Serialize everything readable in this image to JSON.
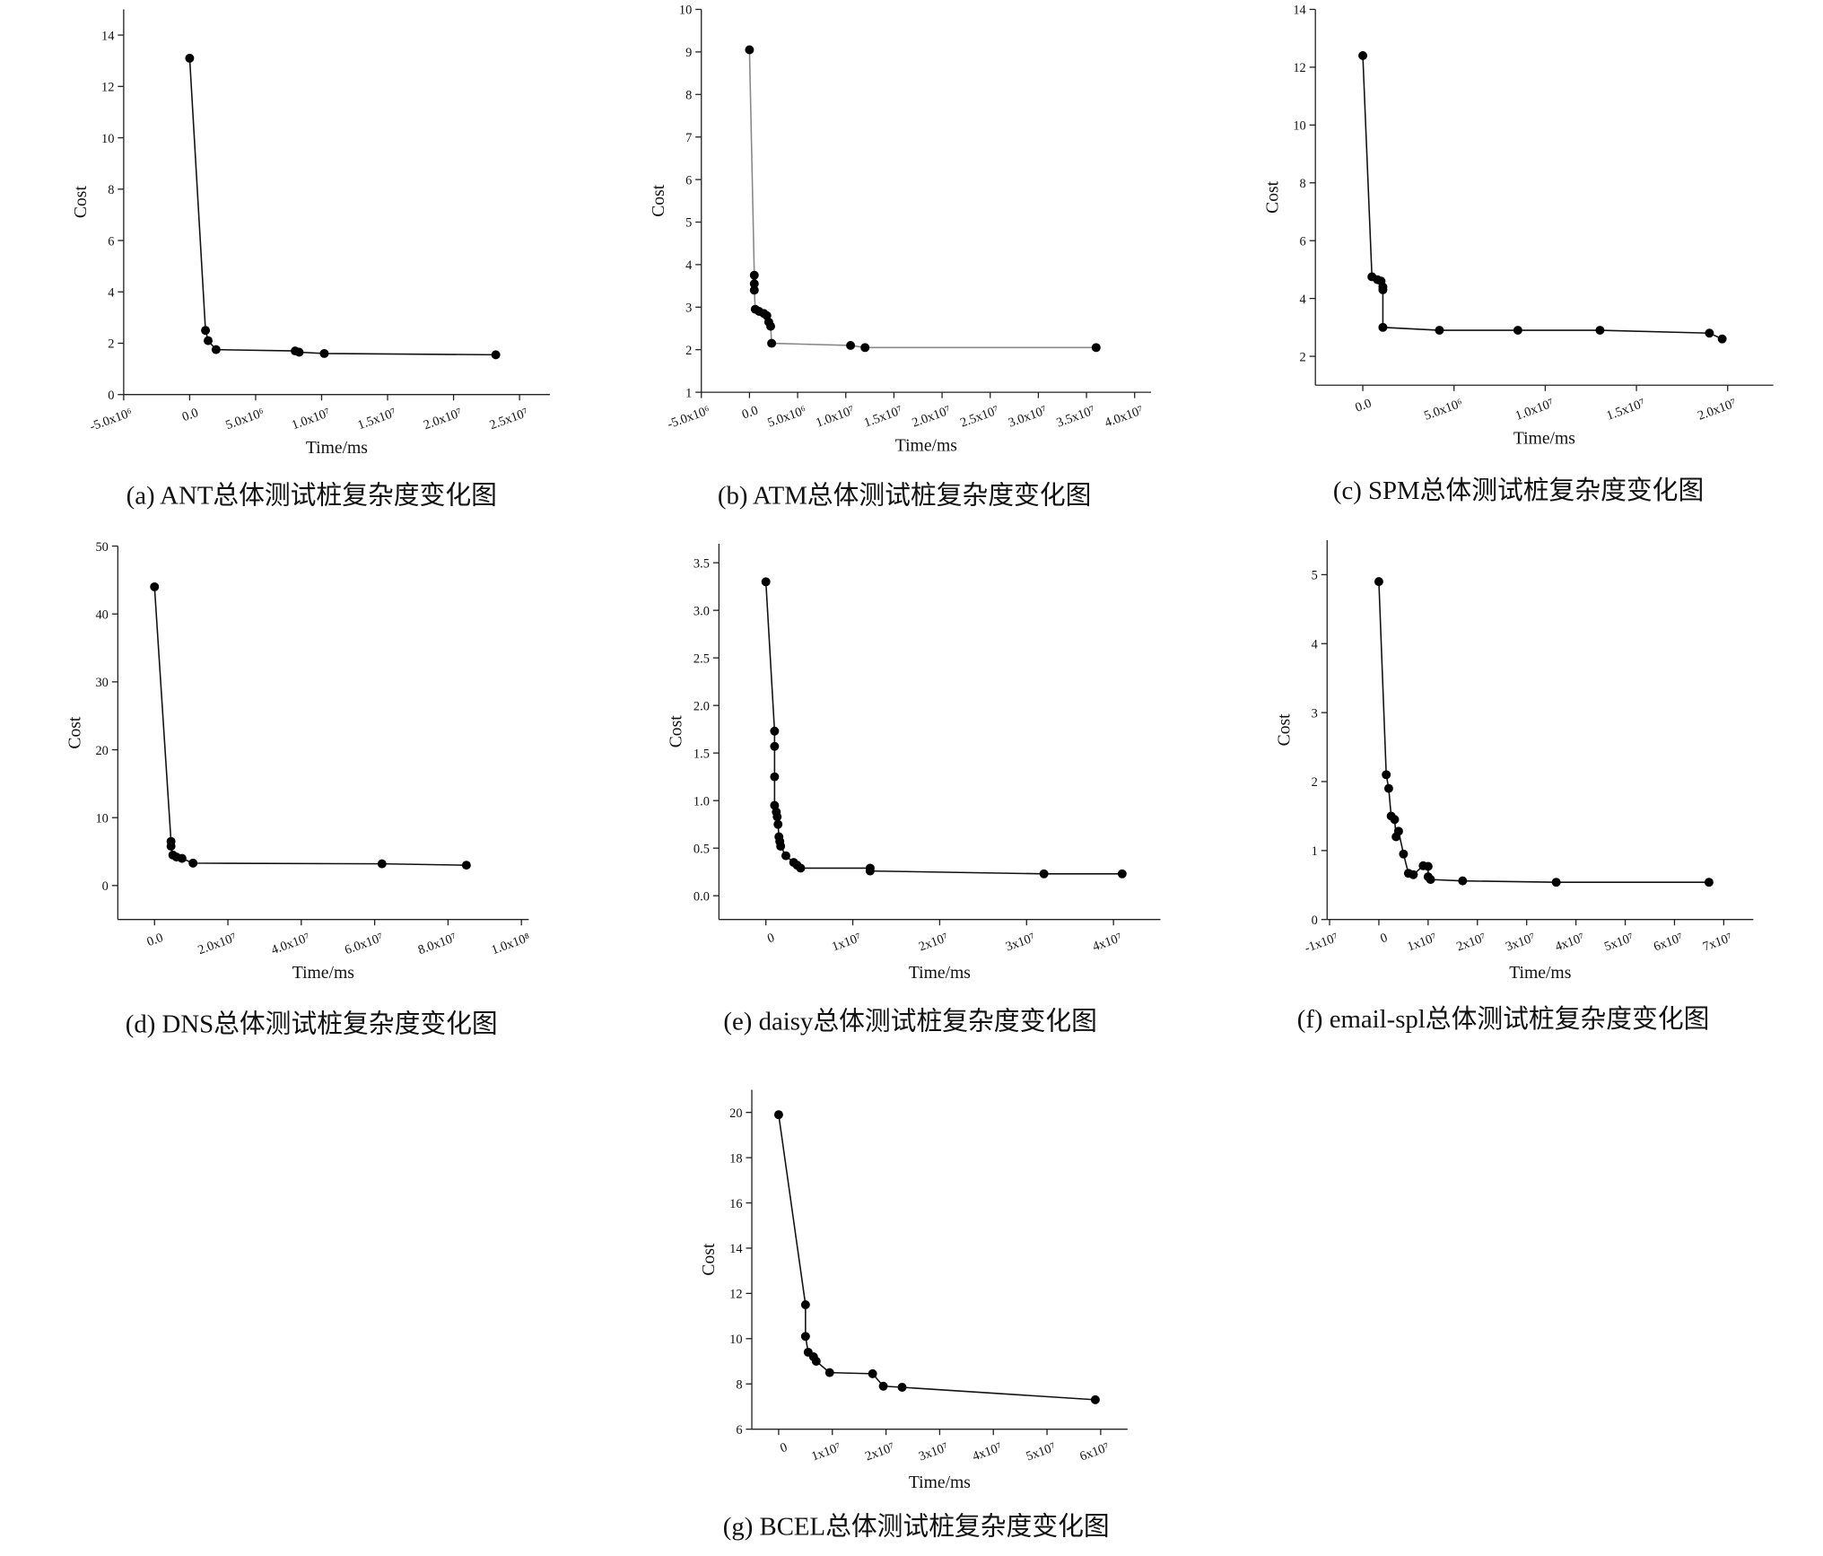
{
  "chart_data": [
    {
      "type": "line",
      "caption": "(a) ANT总体测试桩复杂度变化图",
      "xlabel": "Time/ms",
      "ylabel": "Cost",
      "color": "#111111",
      "xlim": [
        -5000000,
        27300000
      ],
      "ylim": [
        0,
        15
      ],
      "xticks": [
        {
          "value": -5000000,
          "label": "-5.0x10⁶"
        },
        {
          "value": 0,
          "label": "0.0"
        },
        {
          "value": 5000000,
          "label": "5.0x10⁶"
        },
        {
          "value": 10000000,
          "label": "1.0x10⁷"
        },
        {
          "value": 15000000,
          "label": "1.5x10⁷"
        },
        {
          "value": 20000000,
          "label": "2.0x10⁷"
        },
        {
          "value": 25000000,
          "label": "2.5x10⁷"
        }
      ],
      "yticks": [
        0,
        2,
        4,
        6,
        8,
        10,
        12,
        14
      ],
      "x": [
        0,
        1200000,
        1400000,
        2000000,
        8000000,
        8300000,
        10200000,
        23200000
      ],
      "values": [
        13.1,
        2.5,
        2.1,
        1.75,
        1.7,
        1.65,
        1.6,
        1.55
      ]
    },
    {
      "type": "line",
      "caption": "(b) ATM总体测试桩复杂度变化图",
      "xlabel": "Time/ms",
      "ylabel": "Cost",
      "color": "#888888",
      "xlim": [
        -5000000,
        41700000
      ],
      "ylim": [
        1,
        10
      ],
      "xticks": [
        {
          "value": -5000000,
          "label": "-5.0x10⁶"
        },
        {
          "value": 0,
          "label": "0.0"
        },
        {
          "value": 5000000,
          "label": "5.0x10⁶"
        },
        {
          "value": 10000000,
          "label": "1.0x10⁷"
        },
        {
          "value": 15000000,
          "label": "1.5x10⁷"
        },
        {
          "value": 20000000,
          "label": "2.0x10⁷"
        },
        {
          "value": 25000000,
          "label": "2.5x10⁷"
        },
        {
          "value": 30000000,
          "label": "3.0x10⁷"
        },
        {
          "value": 35000000,
          "label": "3.5x10⁷"
        },
        {
          "value": 40000000,
          "label": "4.0x10⁷"
        }
      ],
      "yticks": [
        1,
        2,
        3,
        4,
        5,
        6,
        7,
        8,
        9,
        10
      ],
      "x": [
        0,
        500000,
        500000,
        500000,
        600000,
        1000000,
        1500000,
        1800000,
        2000000,
        2200000,
        2300000,
        10500000,
        12000000,
        36000000
      ],
      "values": [
        9.05,
        3.75,
        3.55,
        3.4,
        2.95,
        2.9,
        2.85,
        2.8,
        2.65,
        2.55,
        2.15,
        2.1,
        2.05,
        2.05
      ]
    },
    {
      "type": "line",
      "caption": "(c) SPM总体测试桩复杂度变化图",
      "xlabel": "Time/ms",
      "ylabel": "Cost",
      "color": "#111111",
      "xlim": [
        -2600000,
        22500000
      ],
      "ylim": [
        1,
        14
      ],
      "xticks": [
        {
          "value": 0,
          "label": "0.0"
        },
        {
          "value": 5000000,
          "label": "5.0x10⁶"
        },
        {
          "value": 10000000,
          "label": "1.0x10⁷"
        },
        {
          "value": 15000000,
          "label": "1.5x10⁷"
        },
        {
          "value": 20000000,
          "label": "2.0x10⁷"
        }
      ],
      "yticks": [
        2,
        4,
        6,
        8,
        10,
        12,
        14
      ],
      "x": [
        0,
        500000,
        800000,
        1000000,
        1100000,
        1100000,
        1100000,
        4200000,
        8500000,
        13000000,
        19000000,
        19700000
      ],
      "values": [
        12.4,
        4.75,
        4.65,
        4.6,
        4.4,
        4.3,
        3.0,
        2.9,
        2.9,
        2.9,
        2.8,
        2.6
      ]
    },
    {
      "type": "line",
      "caption": "(d) DNS总体测试桩复杂度变化图",
      "xlabel": "Time/ms",
      "ylabel": "Cost",
      "color": "#111111",
      "xlim": [
        -10000000,
        102000000
      ],
      "ylim": [
        -5,
        50
      ],
      "xticks": [
        {
          "value": 0,
          "label": "0.0"
        },
        {
          "value": 20000000,
          "label": "2.0x10⁷"
        },
        {
          "value": 40000000,
          "label": "4.0x10⁷"
        },
        {
          "value": 60000000,
          "label": "6.0x10⁷"
        },
        {
          "value": 80000000,
          "label": "8.0x10⁷"
        },
        {
          "value": 100000000,
          "label": "1.0x10⁸"
        }
      ],
      "yticks": [
        0,
        10,
        20,
        30,
        40,
        50
      ],
      "x": [
        0,
        4500000,
        4500000,
        5000000,
        6000000,
        7500000,
        10500000,
        62000000,
        85000000
      ],
      "values": [
        44,
        6.5,
        5.8,
        4.5,
        4.2,
        4.0,
        3.3,
        3.2,
        3.0
      ]
    },
    {
      "type": "line",
      "caption": "(e) daisy总体测试桩复杂度变化图",
      "xlabel": "Time/ms",
      "ylabel": "Cost",
      "color": "#111111",
      "xlim": [
        -5400000,
        45400000
      ],
      "ylim": [
        -0.25,
        3.7
      ],
      "xticks": [
        0,
        {
          "value": 10000000,
          "label": "1x10⁷"
        },
        {
          "value": 20000000,
          "label": "2x10⁷"
        },
        {
          "value": 30000000,
          "label": "3x10⁷"
        },
        {
          "value": 40000000,
          "label": "4x10⁷"
        }
      ],
      "yticks": [
        {
          "value": 0,
          "label": "0.0"
        },
        0.5,
        {
          "value": 1,
          "label": "1.0"
        },
        1.5,
        {
          "value": 2,
          "label": "2.0"
        },
        2.5,
        {
          "value": 3,
          "label": "3.0"
        },
        3.5
      ],
      "x": [
        0,
        1000000,
        1000000,
        1000000,
        1000000,
        1200000,
        1300000,
        1400000,
        1500000,
        1600000,
        1700000,
        2300000,
        3200000,
        3600000,
        4000000,
        12000000,
        12000000,
        32000000,
        41000000
      ],
      "values": [
        3.3,
        1.73,
        1.57,
        1.25,
        0.95,
        0.88,
        0.83,
        0.75,
        0.62,
        0.57,
        0.52,
        0.42,
        0.35,
        0.32,
        0.29,
        0.29,
        0.26,
        0.23,
        0.23
      ]
    },
    {
      "type": "line",
      "caption": "(f) email-spl总体测试桩复杂度变化图",
      "xlabel": "Time/ms",
      "ylabel": "Cost",
      "color": "#111111",
      "xlim": [
        -10500000,
        76000000
      ],
      "ylim": [
        0,
        5.5
      ],
      "xticks": [
        {
          "value": -10000000,
          "label": "-1x10⁷"
        },
        0,
        {
          "value": 10000000,
          "label": "1x10⁷"
        },
        {
          "value": 20000000,
          "label": "2x10⁷"
        },
        {
          "value": 30000000,
          "label": "3x10⁷"
        },
        {
          "value": 40000000,
          "label": "4x10⁷"
        },
        {
          "value": 50000000,
          "label": "5x10⁷"
        },
        {
          "value": 60000000,
          "label": "6x10⁷"
        },
        {
          "value": 70000000,
          "label": "7x10⁷"
        }
      ],
      "yticks": [
        0,
        1,
        2,
        3,
        4,
        5
      ],
      "x": [
        0,
        1500000,
        2000000,
        2500000,
        3200000,
        3500000,
        4000000,
        5000000,
        6000000,
        7000000,
        9000000,
        10000000,
        10000000,
        10500000,
        17000000,
        36000000,
        67000000
      ],
      "values": [
        4.9,
        2.1,
        1.9,
        1.5,
        1.45,
        1.2,
        1.28,
        0.95,
        0.67,
        0.65,
        0.78,
        0.77,
        0.62,
        0.58,
        0.56,
        0.54,
        0.54
      ]
    },
    {
      "type": "line",
      "caption": "(g) BCEL总体测试桩复杂度变化图",
      "xlabel": "Time/ms",
      "ylabel": "Cost",
      "color": "#111111",
      "xlim": [
        -5000000,
        65000000
      ],
      "ylim": [
        6,
        21
      ],
      "xticks": [
        0,
        {
          "value": 10000000,
          "label": "1x10⁷"
        },
        {
          "value": 20000000,
          "label": "2x10⁷"
        },
        {
          "value": 30000000,
          "label": "3x10⁷"
        },
        {
          "value": 40000000,
          "label": "4x10⁷"
        },
        {
          "value": 50000000,
          "label": "5x10⁷"
        },
        {
          "value": 60000000,
          "label": "6x10⁷"
        }
      ],
      "yticks": [
        6,
        8,
        10,
        12,
        14,
        16,
        18,
        20
      ],
      "x": [
        0,
        5000000,
        5000000,
        5500000,
        6500000,
        7000000,
        9500000,
        17500000,
        19500000,
        23000000,
        59000000
      ],
      "values": [
        19.9,
        11.5,
        10.1,
        9.4,
        9.2,
        9.0,
        8.5,
        8.45,
        7.9,
        7.85,
        7.3
      ]
    }
  ]
}
